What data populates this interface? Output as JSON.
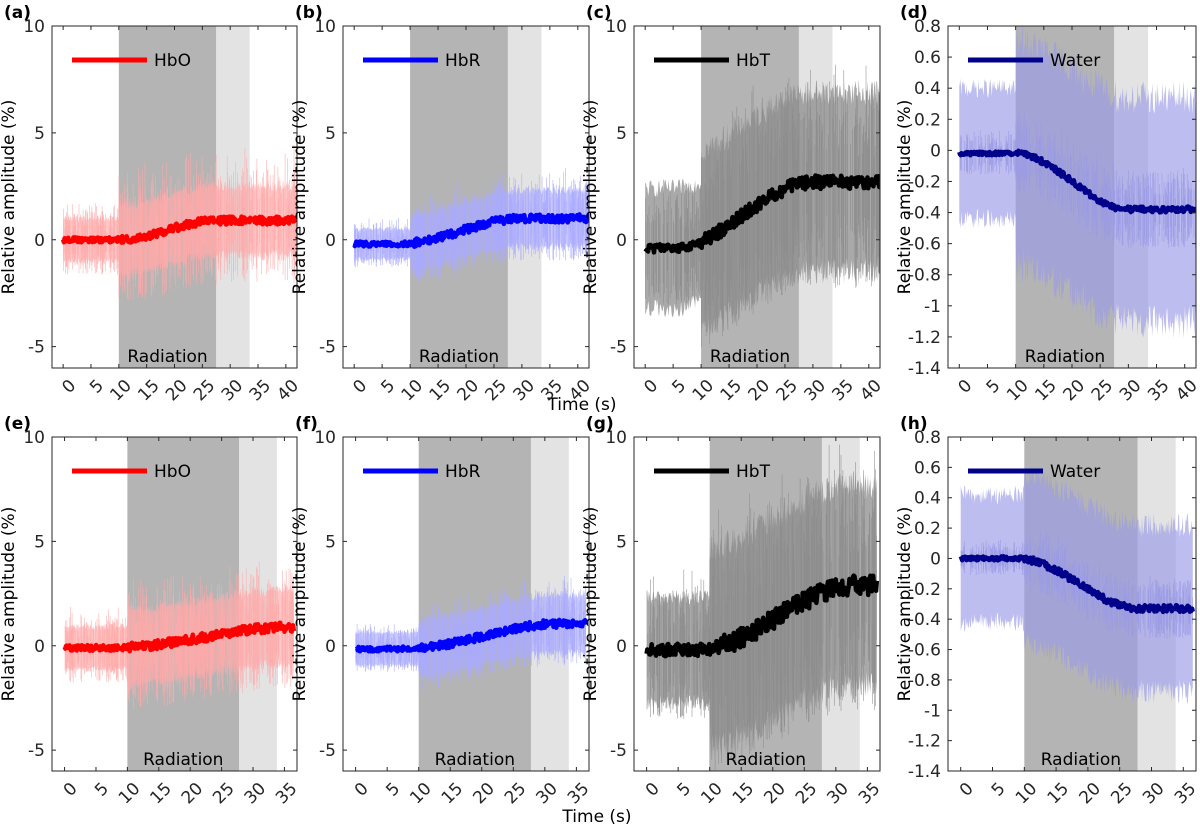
{
  "shared_xlabel": "Time (s)",
  "shared_ylabel": "Relative amplitude (%)",
  "annotation": "Radiation",
  "colors": {
    "HbO": "#ff0000",
    "HbO_band": "#ffaaaa",
    "HbR": "#0000ff",
    "HbR_band": "#aaaaff",
    "HbT": "#000000",
    "HbT_band": "#8c8c8c",
    "Water": "#00008b",
    "Water_band": "#9a9ae6",
    "radiation_shade": "#b4b4b4",
    "post_shade": "#e3e3e3"
  },
  "chart_data": [
    {
      "panel": "(a)",
      "type": "line",
      "series": [
        {
          "name": "HbO"
        }
      ],
      "xlim": [
        -2,
        42
      ],
      "ylim": [
        -6,
        10
      ],
      "xticks": [
        0,
        5,
        10,
        15,
        20,
        25,
        30,
        35,
        40
      ],
      "yticks": [
        -5,
        0,
        5,
        10
      ],
      "ytick_labels": [
        "-5",
        "0",
        "5",
        "10"
      ],
      "radiation": [
        10,
        27.5
      ],
      "post": [
        27.5,
        33.5
      ],
      "duration": 42,
      "mean_start": 0,
      "mean_end": 0.9,
      "rise_start": 10,
      "rise_end": 27.5,
      "noise": 0.12,
      "band_halfwidth": [
        1.0,
        1.6
      ],
      "spikes": 3.0
    },
    {
      "panel": "(b)",
      "type": "line",
      "series": [
        {
          "name": "HbR"
        }
      ],
      "xlim": [
        -2,
        42
      ],
      "ylim": [
        -6,
        10
      ],
      "xticks": [
        0,
        5,
        10,
        15,
        20,
        25,
        30,
        35,
        40
      ],
      "yticks": [
        -5,
        0,
        5,
        10
      ],
      "ytick_labels": [
        "-5",
        "0",
        "5",
        "10"
      ],
      "radiation": [
        10,
        27.5
      ],
      "post": [
        27.5,
        33.5
      ],
      "duration": 42,
      "mean_start": -0.2,
      "mean_end": 1.0,
      "rise_start": 8,
      "rise_end": 30,
      "noise": 0.12,
      "band_halfwidth": [
        0.7,
        1.3
      ],
      "spikes": 2.0
    },
    {
      "panel": "(c)",
      "type": "line",
      "series": [
        {
          "name": "HbT"
        }
      ],
      "xlim": [
        -2,
        42
      ],
      "ylim": [
        -6,
        10
      ],
      "xticks": [
        0,
        5,
        10,
        15,
        20,
        25,
        30,
        35,
        40
      ],
      "yticks": [
        -5,
        0,
        5,
        10
      ],
      "ytick_labels": [
        "-5",
        "0",
        "5",
        "10"
      ],
      "radiation": [
        10,
        27.5
      ],
      "post": [
        27.5,
        33.5
      ],
      "duration": 42,
      "mean_start": -0.4,
      "mean_end": 2.7,
      "rise_start": 5,
      "rise_end": 30,
      "noise": 0.2,
      "band_halfwidth": [
        2.8,
        4.2
      ],
      "spikes": 5.0
    },
    {
      "panel": "(d)",
      "type": "line",
      "series": [
        {
          "name": "Water"
        }
      ],
      "xlim": [
        -2,
        42
      ],
      "ylim": [
        -1.4,
        0.8
      ],
      "xticks": [
        0,
        5,
        10,
        15,
        20,
        25,
        30,
        35,
        40
      ],
      "yticks": [
        -1.4,
        -1.2,
        -1,
        -0.8,
        -0.6,
        -0.4,
        -0.2,
        0,
        0.2,
        0.4,
        0.6,
        0.8
      ],
      "ytick_labels": [
        "-1.4",
        "-1.2",
        "-1",
        "-0.8",
        "-0.6",
        "-0.4",
        "-0.2",
        "0",
        "0.2",
        "0.4",
        "0.6",
        "0.8"
      ],
      "radiation": [
        10,
        27.5
      ],
      "post": [
        27.5,
        33.5
      ],
      "duration": 42,
      "mean_start": -0.02,
      "mean_end": -0.38,
      "rise_start": 10,
      "rise_end": 30,
      "noise": 0.012,
      "band_halfwidth": [
        0.42,
        0.72
      ],
      "spikes": 0.25
    },
    {
      "panel": "(e)",
      "type": "line",
      "series": [
        {
          "name": "HbO"
        }
      ],
      "xlim": [
        -2,
        37
      ],
      "ylim": [
        -6,
        10
      ],
      "xticks": [
        0,
        5,
        10,
        15,
        20,
        25,
        30,
        35
      ],
      "yticks": [
        -5,
        0,
        5,
        10
      ],
      "ytick_labels": [
        "-5",
        "0",
        "5",
        "10"
      ],
      "radiation": [
        10,
        27.8
      ],
      "post": [
        27.8,
        33.8
      ],
      "duration": 36.5,
      "mean_start": -0.1,
      "mean_end": 0.9,
      "rise_start": 8,
      "rise_end": 36,
      "noise": 0.14,
      "band_halfwidth": [
        1.0,
        1.8
      ],
      "spikes": 3.0
    },
    {
      "panel": "(f)",
      "type": "line",
      "series": [
        {
          "name": "HbR"
        }
      ],
      "xlim": [
        -2,
        37
      ],
      "ylim": [
        -6,
        10
      ],
      "xticks": [
        0,
        5,
        10,
        15,
        20,
        25,
        30,
        35
      ],
      "yticks": [
        -5,
        0,
        5,
        10
      ],
      "ytick_labels": [
        "-5",
        "0",
        "5",
        "10"
      ],
      "radiation": [
        10,
        27.8
      ],
      "post": [
        27.8,
        33.8
      ],
      "duration": 36.5,
      "mean_start": -0.15,
      "mean_end": 1.05,
      "rise_start": 8,
      "rise_end": 32,
      "noise": 0.12,
      "band_halfwidth": [
        0.8,
        1.4
      ],
      "spikes": 2.0
    },
    {
      "panel": "(g)",
      "type": "line",
      "series": [
        {
          "name": "HbT"
        }
      ],
      "xlim": [
        -2,
        37
      ],
      "ylim": [
        -6,
        10
      ],
      "xticks": [
        0,
        5,
        10,
        15,
        20,
        25,
        30,
        35
      ],
      "yticks": [
        -5,
        0,
        5,
        10
      ],
      "ytick_labels": [
        "-5",
        "0",
        "5",
        "10"
      ],
      "radiation": [
        10,
        27.8
      ],
      "post": [
        27.8,
        33.8
      ],
      "duration": 36.5,
      "mean_start": -0.2,
      "mean_end": 2.9,
      "rise_start": 8,
      "rise_end": 33,
      "noise": 0.3,
      "band_halfwidth": [
        2.5,
        4.8
      ],
      "spikes": 6.0
    },
    {
      "panel": "(h)",
      "type": "line",
      "series": [
        {
          "name": "Water"
        }
      ],
      "xlim": [
        -2,
        37
      ],
      "ylim": [
        -1.4,
        0.8
      ],
      "xticks": [
        0,
        5,
        10,
        15,
        20,
        25,
        30,
        35
      ],
      "yticks": [
        -1.4,
        -1.2,
        -1,
        -0.8,
        -0.6,
        -0.4,
        -0.2,
        0,
        0.2,
        0.4,
        0.6,
        0.8
      ],
      "ytick_labels": [
        "-1.4",
        "-1.2",
        "-1",
        "-0.8",
        "-0.6",
        "-0.4",
        "-0.2",
        "0",
        "0.2",
        "0.4",
        "0.6",
        "0.8"
      ],
      "radiation": [
        10,
        27.8
      ],
      "post": [
        27.8,
        33.8
      ],
      "duration": 36.5,
      "mean_start": 0.0,
      "mean_end": -0.33,
      "rise_start": 9,
      "rise_end": 28,
      "noise": 0.014,
      "band_halfwidth": [
        0.42,
        0.55
      ],
      "spikes": 0.2
    }
  ]
}
